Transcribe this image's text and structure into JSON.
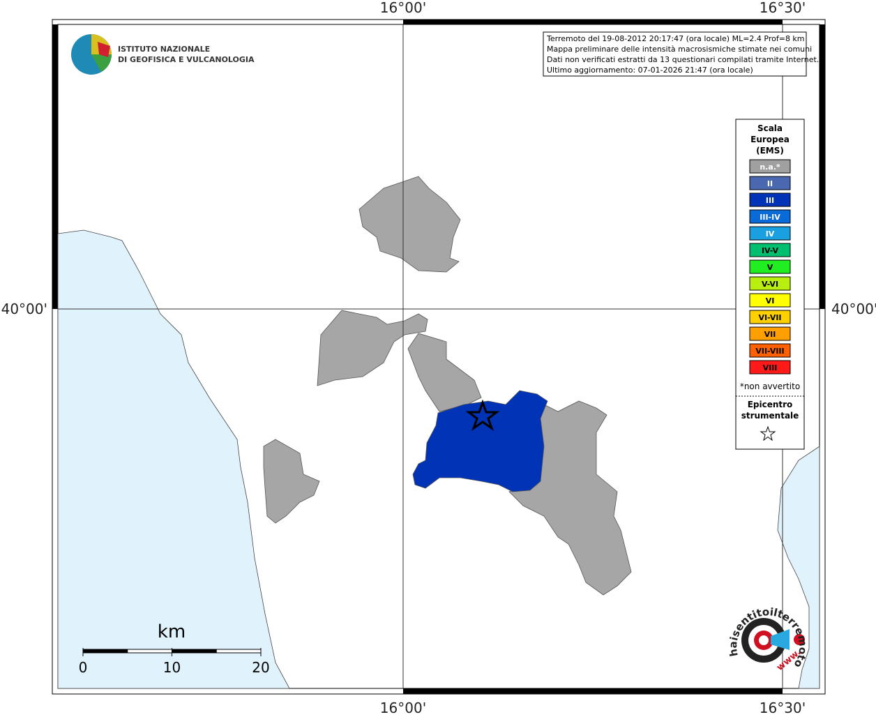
{
  "logo": {
    "line1": "ISTITUTO NAZIONALE",
    "line2": "DI GEOFISICA E VULCANOLOGIA"
  },
  "info": [
    "Terremoto del 19-08-2012 20:17:47 (ora locale) ML=2.4 Prof=8 km",
    "Mappa preliminare delle intensità macrosismiche stimate nei comuni",
    "Dati non verificati estratti da 13 questionari compilati tramite Internet.",
    "Ultimo aggiornamento: 07-01-2026 21:47 (ora locale)"
  ],
  "axes": {
    "top": [
      "16°00'",
      "16°30'"
    ],
    "bottom": [
      "16°00'",
      "16°30'"
    ],
    "left": "40°00'",
    "right": "40°00'"
  },
  "legend": {
    "title": [
      "Scala",
      "Europea",
      "(EMS)"
    ],
    "items": [
      {
        "label": "n.a.*",
        "color": "#a0a0a0",
        "text_color": "#ffffff"
      },
      {
        "label": "II",
        "color": "#4a68b0",
        "text_color": "#ffffff"
      },
      {
        "label": "III",
        "color": "#0033b5",
        "text_color": "#ffffff"
      },
      {
        "label": "III-IV",
        "color": "#0a6ad8",
        "text_color": "#ffffff"
      },
      {
        "label": "IV",
        "color": "#1aa0e0",
        "text_color": "#ffffff"
      },
      {
        "label": "IV-V",
        "color": "#00c070",
        "text_color": "#000000"
      },
      {
        "label": "V",
        "color": "#20ee20",
        "text_color": "#000000"
      },
      {
        "label": "V-VI",
        "color": "#b8ee10",
        "text_color": "#000000"
      },
      {
        "label": "VI",
        "color": "#ffff00",
        "text_color": "#000000"
      },
      {
        "label": "VI-VII",
        "color": "#ffd000",
        "text_color": "#000000"
      },
      {
        "label": "VII",
        "color": "#ffa000",
        "text_color": "#000000"
      },
      {
        "label": "VII-VIII",
        "color": "#ff6000",
        "text_color": "#000000"
      },
      {
        "label": "VIII",
        "color": "#ff1a1a",
        "text_color": "#000000"
      }
    ],
    "note": "*non avvertito",
    "epicenter": [
      "Epicentro",
      "strumentale"
    ]
  },
  "scale_bar": {
    "unit": "km",
    "ticks": [
      0,
      10,
      20
    ]
  },
  "badge": {
    "text": "haisentitoilterremoto.it",
    "www": "www."
  }
}
